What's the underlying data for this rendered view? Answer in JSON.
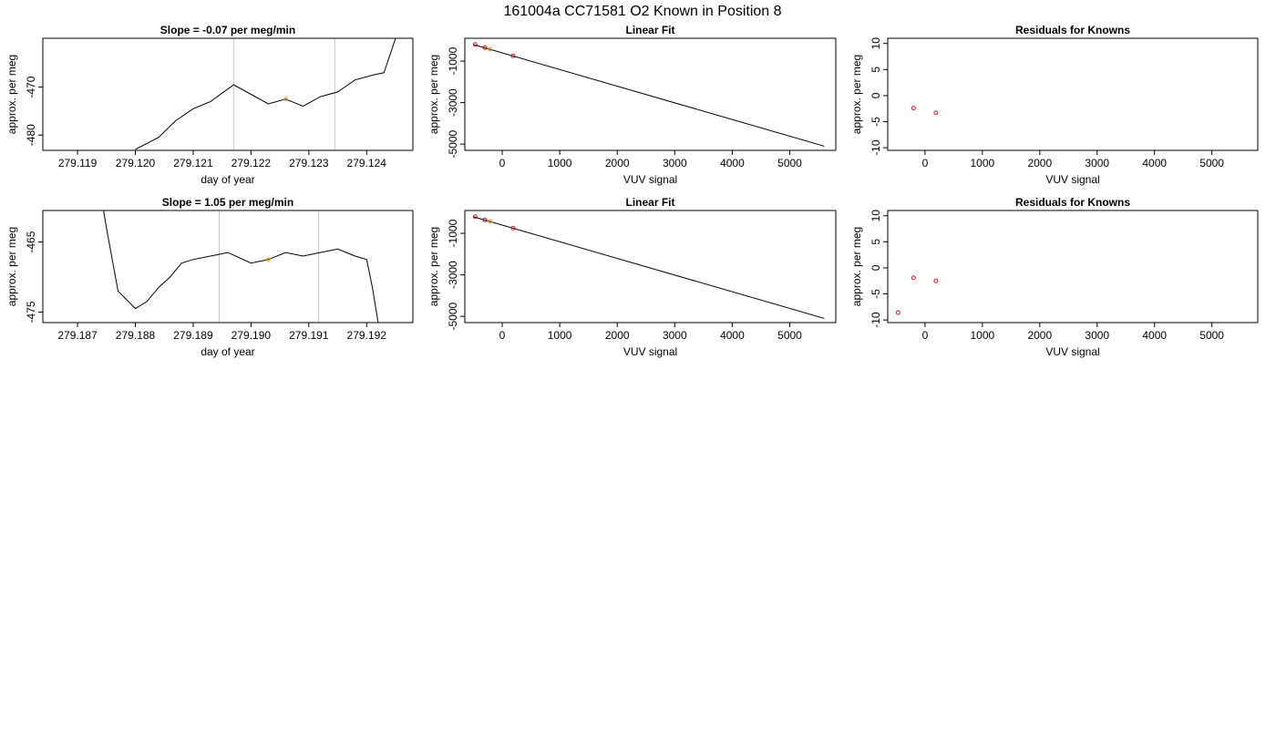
{
  "page_title": "161004a     CC71581   O2 Known in Position  8",
  "colors": {
    "line": "#000000",
    "vline": "#c8c8c8",
    "point_red": "#d00000",
    "point_orange": "#f0a020",
    "frame": "#000000"
  },
  "chart_data": [
    {
      "type": "line",
      "title": "Slope =  -0.07  per meg/min",
      "xlabel": "day of year",
      "ylabel": "approx. per meg",
      "xlim": [
        279.1184,
        279.1248
      ],
      "ylim": [
        -483.2,
        -459.8
      ],
      "xticks": [
        "279.119",
        "279.120",
        "279.121",
        "279.122",
        "279.123",
        "279.124"
      ],
      "xtick_values": [
        279.119,
        279.12,
        279.121,
        279.122,
        279.123,
        279.124
      ],
      "yticks": [
        "-470",
        "-480"
      ],
      "ytick_values": [
        -470,
        -480
      ],
      "vlines": [
        279.1217,
        279.12345
      ],
      "marker": {
        "x": 279.1226,
        "y": -472.5
      },
      "series": [
        {
          "x": [
            279.12,
            279.1204,
            279.1207,
            279.121,
            279.1213,
            279.1217,
            279.122,
            279.1223,
            279.1226,
            279.1229,
            279.1232,
            279.1235,
            279.1238,
            279.1241,
            279.1243,
            279.1245
          ],
          "values": [
            -483.0,
            -480.5,
            -477.0,
            -474.5,
            -473.0,
            -469.5,
            -471.5,
            -473.5,
            -472.5,
            -474.0,
            -472.0,
            -471.0,
            -468.5,
            -467.5,
            -467.0,
            -459.8
          ]
        }
      ]
    },
    {
      "type": "scatter",
      "title": "Linear Fit",
      "xlabel": "VUV signal",
      "ylabel": "approx. per meg",
      "xlim": [
        -650,
        5800
      ],
      "ylim": [
        -5300,
        100
      ],
      "xticks": [
        "0",
        "1000",
        "2000",
        "3000",
        "4000",
        "5000"
      ],
      "xtick_values": [
        0,
        1000,
        2000,
        3000,
        4000,
        5000
      ],
      "yticks": [
        "-1000",
        "-3000",
        "-5000"
      ],
      "ytick_values": [
        -1000,
        -3000,
        -5000
      ],
      "fit_line": {
        "x": [
          -500,
          5600
        ],
        "y": [
          -200,
          -5100
        ]
      },
      "points_red": {
        "x": [
          -470,
          -300,
          190
        ],
        "y": [
          -200,
          -350,
          -750
        ]
      },
      "points_orange": {
        "x": [
          -210
        ],
        "y": [
          -430
        ]
      }
    },
    {
      "type": "scatter",
      "title": "Residuals for Knowns",
      "xlabel": "VUV signal",
      "ylabel": "approx. per meg",
      "xlim": [
        -650,
        5800
      ],
      "ylim": [
        -10.5,
        11
      ],
      "xticks": [
        "0",
        "1000",
        "2000",
        "3000",
        "4000",
        "5000"
      ],
      "xtick_values": [
        0,
        1000,
        2000,
        3000,
        4000,
        5000
      ],
      "yticks": [
        "10",
        "5",
        "0",
        "-5",
        "-10"
      ],
      "ytick_values": [
        10,
        5,
        0,
        -5,
        -10
      ],
      "points_red": {
        "x": [
          -200,
          190
        ],
        "y": [
          -2.4,
          -3.3
        ]
      }
    },
    {
      "type": "line",
      "title": "Slope =  1.05  per meg/min",
      "xlabel": "day of year",
      "ylabel": "approx. per meg",
      "xlim": [
        279.1864,
        279.1928
      ],
      "ylim": [
        -476.5,
        -460.5
      ],
      "xticks": [
        "279.187",
        "279.188",
        "279.189",
        "279.190",
        "279.191",
        "279.192"
      ],
      "xtick_values": [
        279.187,
        279.188,
        279.189,
        279.19,
        279.191,
        279.192
      ],
      "yticks": [
        "-465",
        "-475"
      ],
      "ytick_values": [
        -465,
        -475
      ],
      "vlines": [
        279.18945,
        279.19117
      ],
      "marker": {
        "x": 279.1903,
        "y": -467.5
      },
      "series": [
        {
          "x": [
            279.18745,
            279.1875,
            279.1877,
            279.188,
            279.1882,
            279.1884,
            279.1886,
            279.1888,
            279.189,
            279.1893,
            279.1896,
            279.19,
            279.1903,
            279.1906,
            279.1909,
            279.1912,
            279.1915,
            279.1918,
            279.192,
            279.1921,
            279.1922
          ],
          "values": [
            -460.5,
            -463.0,
            -472.0,
            -474.5,
            -473.5,
            -471.5,
            -470.0,
            -468.0,
            -467.5,
            -467.0,
            -466.5,
            -468.0,
            -467.5,
            -466.5,
            -467.0,
            -466.5,
            -466.0,
            -467.0,
            -467.5,
            -471.5,
            -476.5
          ]
        }
      ]
    },
    {
      "type": "scatter",
      "title": "Linear Fit",
      "xlabel": "VUV signal",
      "ylabel": "approx. per meg",
      "xlim": [
        -650,
        5800
      ],
      "ylim": [
        -5300,
        100
      ],
      "xticks": [
        "0",
        "1000",
        "2000",
        "3000",
        "4000",
        "5000"
      ],
      "xtick_values": [
        0,
        1000,
        2000,
        3000,
        4000,
        5000
      ],
      "yticks": [
        "-1000",
        "-3000",
        "-5000"
      ],
      "ytick_values": [
        -1000,
        -3000,
        -5000
      ],
      "fit_line": {
        "x": [
          -500,
          5600
        ],
        "y": [
          -200,
          -5100
        ]
      },
      "points_red": {
        "x": [
          -470,
          -300,
          190
        ],
        "y": [
          -200,
          -350,
          -750
        ]
      },
      "points_orange": {
        "x": [
          -210
        ],
        "y": [
          -430
        ]
      }
    },
    {
      "type": "scatter",
      "title": "Residuals for Knowns",
      "xlabel": "VUV signal",
      "ylabel": "approx. per meg",
      "xlim": [
        -650,
        5800
      ],
      "ylim": [
        -10.5,
        11
      ],
      "xticks": [
        "0",
        "1000",
        "2000",
        "3000",
        "4000",
        "5000"
      ],
      "xtick_values": [
        0,
        1000,
        2000,
        3000,
        4000,
        5000
      ],
      "yticks": [
        "10",
        "5",
        "0",
        "-5",
        "-10"
      ],
      "ytick_values": [
        10,
        5,
        0,
        -5,
        -10
      ],
      "points_red": {
        "x": [
          -470,
          -200,
          190
        ],
        "y": [
          -8.6,
          -1.9,
          -2.5
        ]
      }
    }
  ]
}
